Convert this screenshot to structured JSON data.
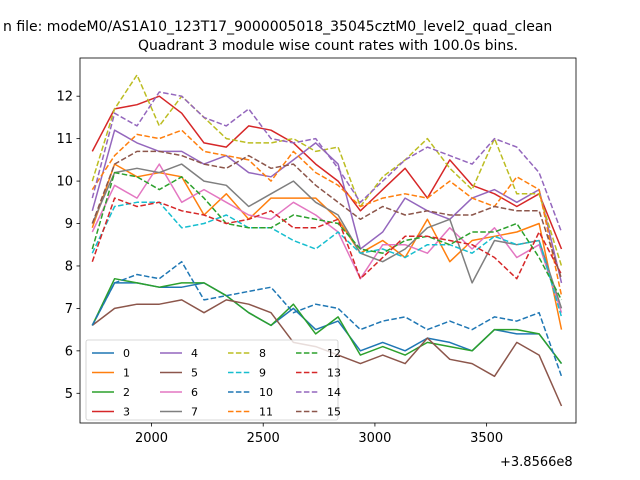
{
  "page_title": "n file: modeM0/AS1A10_123T17_9000005018_35045cztM0_level2_quad_clean",
  "chart_data": {
    "type": "line",
    "title": "Quadrant 3 module wise count rates with 100.0s bins.",
    "xlabel": "",
    "ylabel": "",
    "x_offset_label": "+3.8566e8",
    "xlim": [
      1680,
      3900
    ],
    "ylim": [
      4.3,
      12.9
    ],
    "xticks": [
      2000,
      2500,
      3000,
      3500
    ],
    "yticks": [
      5,
      6,
      7,
      8,
      9,
      10,
      11,
      12
    ],
    "grid": false,
    "legend_placement": "lower left",
    "x": [
      1735,
      1835,
      1935,
      2035,
      2135,
      2235,
      2335,
      2435,
      2535,
      2635,
      2735,
      2835,
      2935,
      3035,
      3135,
      3235,
      3335,
      3435,
      3535,
      3635,
      3735,
      3835
    ],
    "series": [
      {
        "name": "0",
        "color": "#1f77b4",
        "dash": "solid",
        "values": [
          6.6,
          7.6,
          7.6,
          7.5,
          7.5,
          7.6,
          7.3,
          6.9,
          6.6,
          7.0,
          6.5,
          6.7,
          6.0,
          6.2,
          6.0,
          6.3,
          6.2,
          6.0,
          6.5,
          6.4,
          6.4,
          5.7
        ]
      },
      {
        "name": "1",
        "color": "#ff7f0e",
        "dash": "solid",
        "values": [
          8.9,
          10.4,
          10.1,
          10.2,
          10.1,
          9.2,
          9.7,
          9.1,
          9.6,
          9.6,
          9.6,
          9.1,
          8.3,
          8.6,
          8.2,
          9.1,
          8.1,
          8.6,
          8.7,
          8.8,
          9.0,
          6.5
        ]
      },
      {
        "name": "2",
        "color": "#2ca02c",
        "dash": "solid",
        "values": [
          6.6,
          7.7,
          7.6,
          7.5,
          7.6,
          7.6,
          7.3,
          6.9,
          6.6,
          7.1,
          6.4,
          6.8,
          5.9,
          6.1,
          5.9,
          6.2,
          6.1,
          6.0,
          6.5,
          6.5,
          6.4,
          5.7
        ]
      },
      {
        "name": "3",
        "color": "#d62728",
        "dash": "solid",
        "values": [
          10.7,
          11.7,
          11.8,
          12.0,
          11.6,
          10.9,
          10.8,
          11.3,
          11.2,
          10.9,
          10.4,
          10.0,
          9.3,
          9.8,
          10.3,
          9.6,
          10.5,
          9.9,
          9.7,
          9.4,
          9.7,
          8.4
        ]
      },
      {
        "name": "4",
        "color": "#9467bd",
        "dash": "solid",
        "values": [
          9.3,
          11.2,
          10.9,
          10.7,
          10.7,
          10.4,
          10.6,
          10.2,
          10.1,
          10.5,
          10.9,
          10.4,
          8.4,
          8.8,
          9.6,
          9.3,
          9.1,
          9.6,
          9.8,
          9.5,
          9.8,
          7.6
        ]
      },
      {
        "name": "5",
        "color": "#8c564b",
        "dash": "solid",
        "values": [
          6.6,
          7.0,
          7.1,
          7.1,
          7.2,
          6.9,
          7.2,
          7.1,
          6.9,
          6.2,
          6.1,
          5.9,
          5.7,
          5.9,
          5.7,
          6.3,
          5.8,
          5.7,
          5.4,
          6.2,
          5.9,
          4.7
        ]
      },
      {
        "name": "6",
        "color": "#e377c2",
        "dash": "solid",
        "values": [
          8.8,
          9.9,
          9.6,
          10.4,
          9.5,
          9.8,
          9.5,
          9.2,
          9.1,
          9.5,
          9.2,
          8.8,
          7.7,
          8.5,
          8.5,
          8.3,
          8.9,
          8.4,
          8.9,
          8.2,
          8.5,
          6.9
        ]
      },
      {
        "name": "7",
        "color": "#7f7f7f",
        "dash": "solid",
        "values": [
          9.0,
          10.2,
          10.3,
          10.2,
          10.4,
          10.0,
          9.9,
          9.4,
          9.7,
          10.0,
          9.5,
          9.2,
          8.3,
          8.1,
          8.4,
          8.9,
          9.1,
          7.6,
          8.6,
          8.5,
          8.6,
          7.0
        ]
      },
      {
        "name": "8",
        "color": "#bcbd22",
        "dash": "dashed",
        "values": [
          10.0,
          11.7,
          12.5,
          11.3,
          12.0,
          11.5,
          11.0,
          10.9,
          10.9,
          11.0,
          10.7,
          10.8,
          9.4,
          10.1,
          10.5,
          11.0,
          10.3,
          9.8,
          11.0,
          9.7,
          9.7,
          8.0
        ]
      },
      {
        "name": "9",
        "color": "#17becf",
        "dash": "dashed",
        "values": [
          8.3,
          9.4,
          9.5,
          9.5,
          8.9,
          9.0,
          9.2,
          8.9,
          8.9,
          8.6,
          8.4,
          8.8,
          8.3,
          8.4,
          8.2,
          8.5,
          8.5,
          8.3,
          8.7,
          8.5,
          8.6,
          6.8
        ]
      },
      {
        "name": "10",
        "color": "#1f77b4",
        "dash": "dashed",
        "values": [
          6.6,
          7.6,
          7.8,
          7.7,
          8.1,
          7.2,
          7.3,
          7.4,
          7.5,
          6.9,
          7.1,
          7.0,
          6.5,
          6.7,
          6.8,
          6.5,
          6.7,
          6.5,
          6.8,
          6.7,
          6.9,
          5.4
        ]
      },
      {
        "name": "11",
        "color": "#ff7f0e",
        "dash": "dashed",
        "values": [
          9.8,
          10.6,
          11.1,
          11.0,
          11.2,
          10.7,
          10.6,
          10.5,
          10.0,
          10.7,
          10.2,
          9.9,
          9.4,
          9.6,
          9.7,
          9.6,
          10.0,
          9.6,
          9.4,
          10.1,
          9.8,
          7.3
        ]
      },
      {
        "name": "12",
        "color": "#2ca02c",
        "dash": "dashed",
        "values": [
          8.4,
          10.2,
          10.1,
          9.8,
          10.1,
          9.6,
          9.0,
          8.9,
          8.9,
          9.2,
          9.1,
          9.0,
          8.4,
          8.3,
          8.6,
          8.7,
          8.5,
          8.8,
          8.8,
          9.0,
          8.2,
          7.2
        ]
      },
      {
        "name": "13",
        "color": "#d62728",
        "dash": "dashed",
        "values": [
          8.1,
          9.6,
          9.4,
          9.5,
          9.3,
          9.2,
          9.0,
          9.1,
          9.3,
          8.9,
          8.9,
          9.1,
          7.7,
          8.2,
          8.7,
          8.7,
          8.6,
          8.5,
          8.2,
          7.7,
          8.8,
          7.8
        ]
      },
      {
        "name": "14",
        "color": "#9467bd",
        "dash": "dashed",
        "values": [
          9.6,
          11.6,
          11.3,
          12.1,
          12.0,
          11.5,
          11.3,
          11.7,
          11.0,
          10.9,
          11.0,
          10.3,
          9.5,
          10.0,
          10.5,
          10.8,
          10.6,
          10.4,
          11.0,
          10.8,
          10.2,
          8.8
        ]
      },
      {
        "name": "15",
        "color": "#8c564b",
        "dash": "dashed",
        "values": [
          9.0,
          10.4,
          10.7,
          10.7,
          10.6,
          10.4,
          10.3,
          10.6,
          10.3,
          10.4,
          9.9,
          9.5,
          9.1,
          9.4,
          9.2,
          9.3,
          9.2,
          9.2,
          9.4,
          9.3,
          9.3,
          7.7
        ]
      }
    ]
  }
}
